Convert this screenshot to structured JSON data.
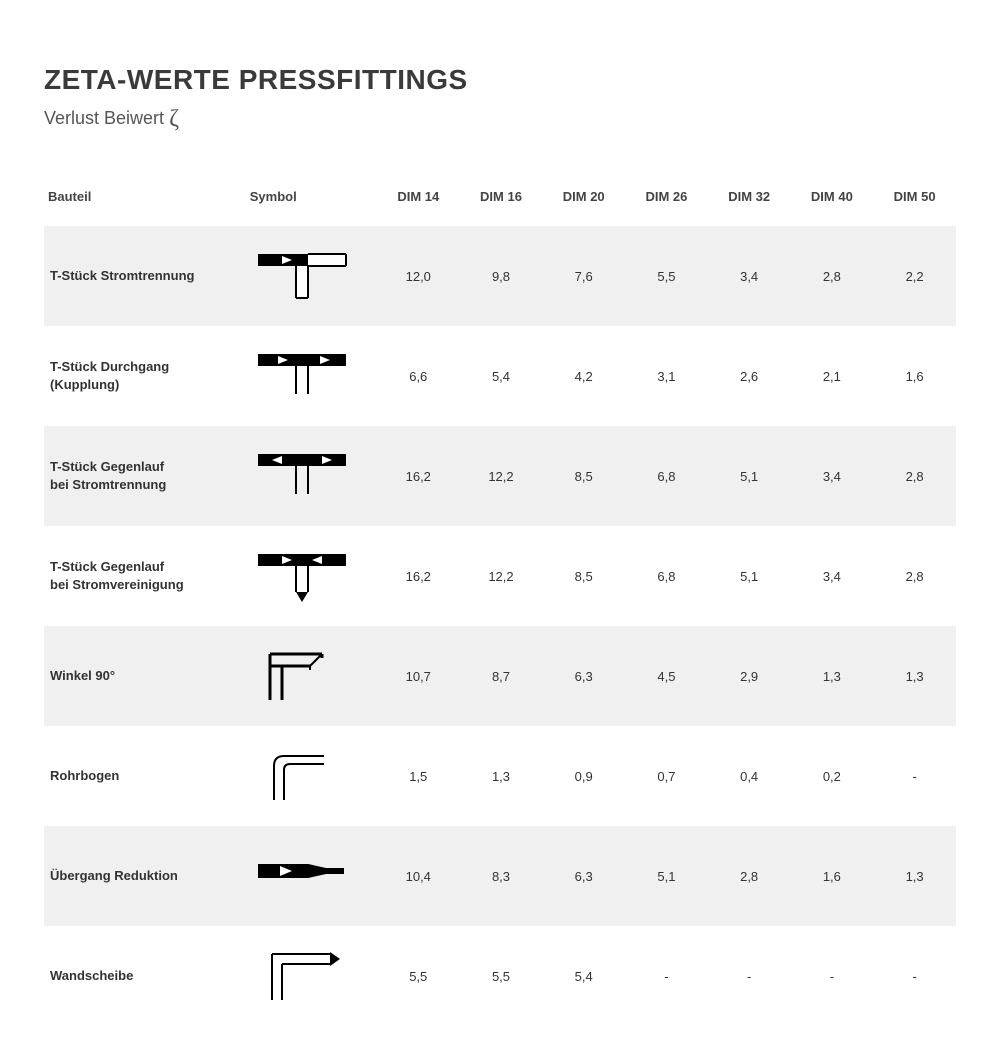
{
  "title": "ZETA-WERTE PRESSFITTINGS",
  "subtitle_prefix": "Verlust Beiwert ",
  "subtitle_symbol": "ζ",
  "colors": {
    "background": "#ffffff",
    "shade_row": "#f0f0f0",
    "text": "#333333",
    "symbol": "#000000"
  },
  "columns": {
    "bauteil": "Bauteil",
    "symbol": "Symbol",
    "dims": [
      "DIM 14",
      "DIM 16",
      "DIM 20",
      "DIM 26",
      "DIM 32",
      "DIM 40",
      "DIM 50"
    ]
  },
  "rows": [
    {
      "name": "T-Stück Stromtrennung",
      "icon": "t-split",
      "shade": true,
      "values": [
        "12,0",
        "9,8",
        "7,6",
        "5,5",
        "3,4",
        "2,8",
        "2,2"
      ]
    },
    {
      "name": "T-Stück Durchgang (Kupplung)",
      "icon": "t-pass",
      "shade": false,
      "values": [
        "6,6",
        "5,4",
        "4,2",
        "3,1",
        "2,6",
        "2,1",
        "1,6"
      ]
    },
    {
      "name": "T-Stück Gegenlauf\nbei Stromtrennung",
      "icon": "t-counter-sep",
      "shade": true,
      "values": [
        "16,2",
        "12,2",
        "8,5",
        "6,8",
        "5,1",
        "3,4",
        "2,8"
      ]
    },
    {
      "name": "T-Stück Gegenlauf\nbei Stromvereinigung",
      "icon": "t-counter-join",
      "shade": false,
      "values": [
        "16,2",
        "12,2",
        "8,5",
        "6,8",
        "5,1",
        "3,4",
        "2,8"
      ]
    },
    {
      "name": "Winkel 90°",
      "icon": "elbow90",
      "shade": true,
      "values": [
        "10,7",
        "8,7",
        "6,3",
        "4,5",
        "2,9",
        "1,3",
        "1,3"
      ]
    },
    {
      "name": "Rohrbogen",
      "icon": "bend",
      "shade": false,
      "values": [
        "1,5",
        "1,3",
        "0,9",
        "0,7",
        "0,4",
        "0,2",
        "-"
      ]
    },
    {
      "name": "Übergang Reduktion",
      "icon": "reducer",
      "shade": true,
      "values": [
        "10,4",
        "8,3",
        "6,3",
        "5,1",
        "2,8",
        "1,6",
        "1,3"
      ]
    },
    {
      "name": "Wandscheibe",
      "icon": "wallplate",
      "shade": false,
      "values": [
        "5,5",
        "5,5",
        "5,4",
        "-",
        "-",
        "-",
        "-"
      ]
    }
  ]
}
